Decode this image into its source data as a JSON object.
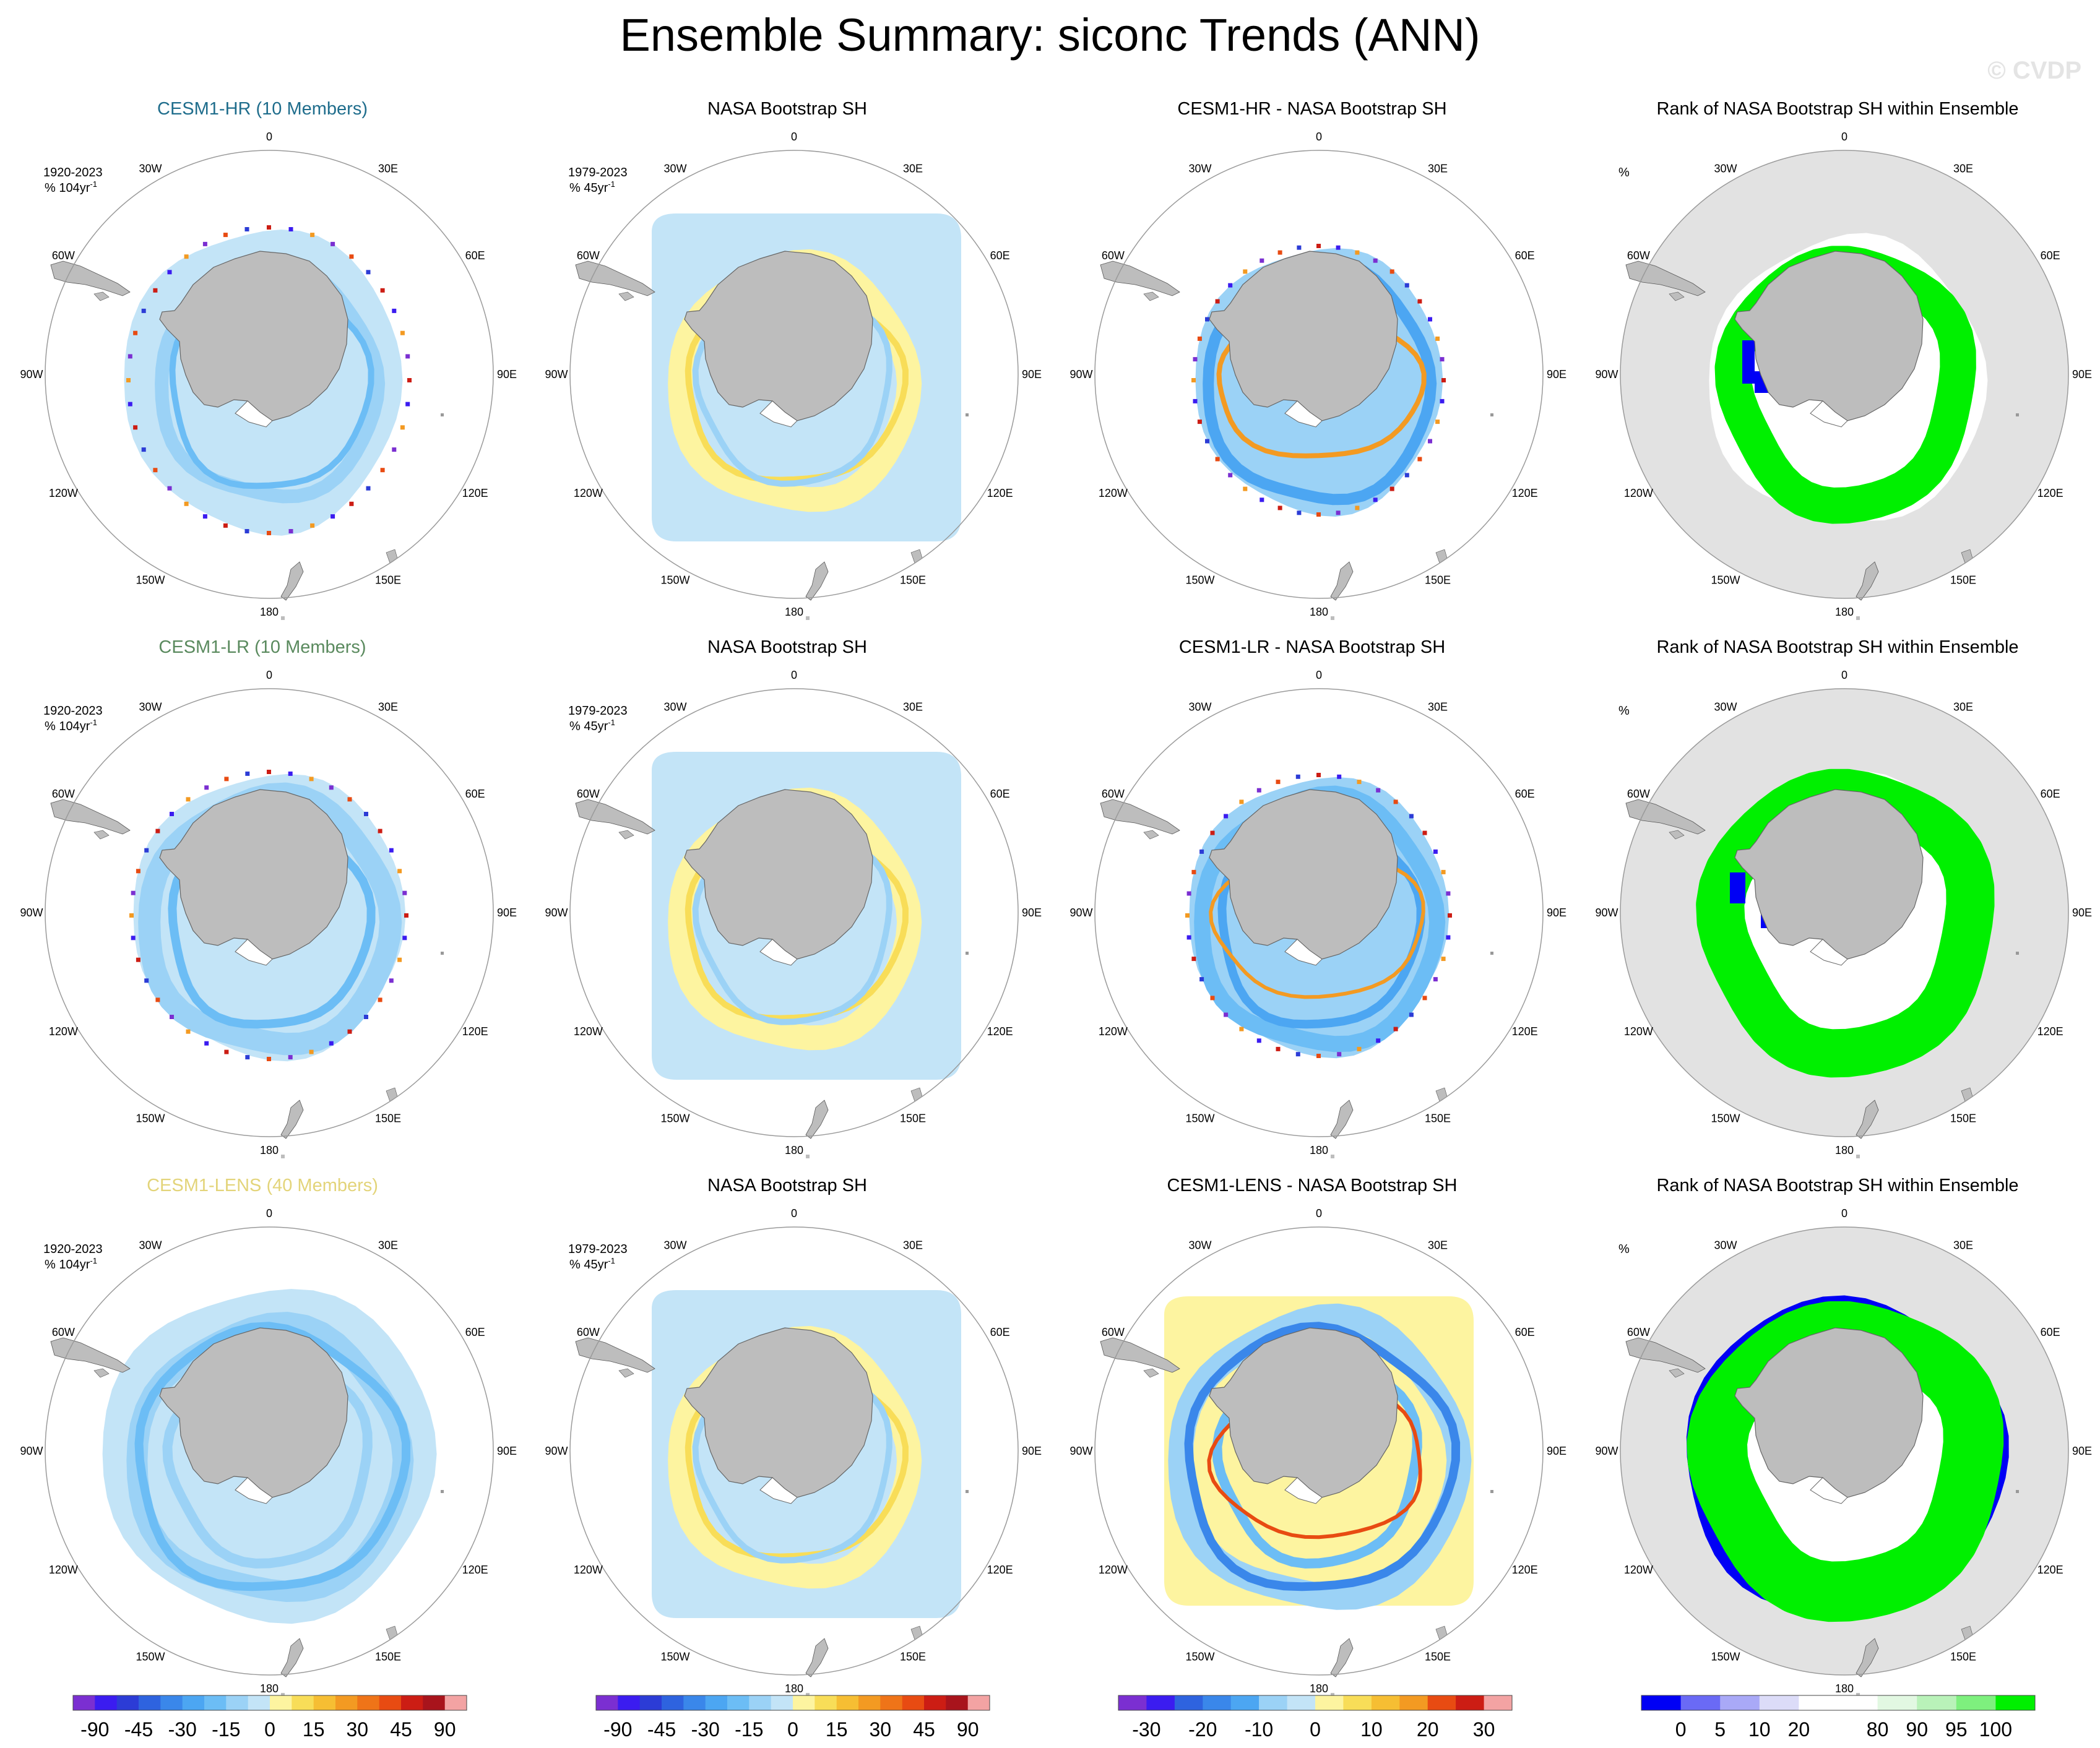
{
  "title": "Ensemble Summary: siconc Trends (ANN)",
  "watermark": "© CVDP",
  "lon_labels": [
    "0",
    "30E",
    "60E",
    "90E",
    "120E",
    "150E",
    "180",
    "150W",
    "120W",
    "90W",
    "60W",
    "30W"
  ],
  "colors": {
    "land": "#bdbdbd",
    "rank_ocean": "#e2e2e2",
    "hr_title": "#1f6d8c",
    "lr_title": "#5a8a5e",
    "lens_title": "#e3d47a"
  },
  "rows": [
    {
      "panels": [
        {
          "title": "CESM1-HR (10 Members)",
          "title_color": "#1f6d8c",
          "period": "1920-2023",
          "units": "% 104yr",
          "units_sup": "-1",
          "kind": "model",
          "style": "hr"
        },
        {
          "title": "NASA Bootstrap SH",
          "title_color": "#000000",
          "period": "1979-2023",
          "units": "% 45yr",
          "units_sup": "-1",
          "kind": "obs",
          "style": "obs"
        },
        {
          "title": "CESM1-HR - NASA Bootstrap SH",
          "title_color": "#000000",
          "period": "",
          "units": "",
          "units_sup": "",
          "kind": "diff",
          "style": "diff_hr"
        },
        {
          "title": "Rank of NASA Bootstrap SH within Ensemble",
          "title_color": "#000000",
          "period": "%",
          "units": "",
          "units_sup": "",
          "kind": "rank",
          "style": "rank_hr"
        }
      ]
    },
    {
      "panels": [
        {
          "title": "CESM1-LR (10 Members)",
          "title_color": "#5a8a5e",
          "period": "1920-2023",
          "units": "% 104yr",
          "units_sup": "-1",
          "kind": "model",
          "style": "lr"
        },
        {
          "title": "NASA Bootstrap SH",
          "title_color": "#000000",
          "period": "1979-2023",
          "units": "% 45yr",
          "units_sup": "-1",
          "kind": "obs",
          "style": "obs"
        },
        {
          "title": "CESM1-LR - NASA Bootstrap SH",
          "title_color": "#000000",
          "period": "",
          "units": "",
          "units_sup": "",
          "kind": "diff",
          "style": "diff_lr"
        },
        {
          "title": "Rank of NASA Bootstrap SH within Ensemble",
          "title_color": "#000000",
          "period": "%",
          "units": "",
          "units_sup": "",
          "kind": "rank",
          "style": "rank_lr"
        }
      ]
    },
    {
      "panels": [
        {
          "title": "CESM1-LENS (40 Members)",
          "title_color": "#e3d47a",
          "period": "1920-2023",
          "units": "% 104yr",
          "units_sup": "-1",
          "kind": "model",
          "style": "lens"
        },
        {
          "title": "NASA Bootstrap SH",
          "title_color": "#000000",
          "period": "1979-2023",
          "units": "% 45yr",
          "units_sup": "-1",
          "kind": "obs",
          "style": "obs"
        },
        {
          "title": "CESM1-LENS - NASA Bootstrap SH",
          "title_color": "#000000",
          "period": "",
          "units": "",
          "units_sup": "",
          "kind": "diff",
          "style": "diff_lens"
        },
        {
          "title": "Rank of NASA Bootstrap SH within Ensemble",
          "title_color": "#000000",
          "period": "%",
          "units": "",
          "units_sup": "",
          "kind": "rank",
          "style": "rank_lens"
        }
      ]
    }
  ],
  "colorbars": [
    {
      "labels": [
        "-90",
        "-45",
        "-30",
        "-15",
        "0",
        "15",
        "30",
        "45",
        "90"
      ],
      "colors": [
        "#7b2fd1",
        "#3b1cf0",
        "#2c3cd6",
        "#2e63df",
        "#3a87ea",
        "#4ca6f2",
        "#6cbdf5",
        "#9bd2f6",
        "#c3e4f7",
        "#fdf4a0",
        "#f8dd58",
        "#f6be33",
        "#f39a22",
        "#ef7418",
        "#e84b12",
        "#cc1d14",
        "#a8141c",
        "#f3a3a3"
      ],
      "label_positions": [
        1,
        3,
        5,
        7,
        9,
        11,
        13,
        15,
        17
      ]
    },
    {
      "labels": [
        "-90",
        "-45",
        "-30",
        "-15",
        "0",
        "15",
        "30",
        "45",
        "90"
      ],
      "colors": [
        "#7b2fd1",
        "#3b1cf0",
        "#2c3cd6",
        "#2e63df",
        "#3a87ea",
        "#4ca6f2",
        "#6cbdf5",
        "#9bd2f6",
        "#c3e4f7",
        "#fdf4a0",
        "#f8dd58",
        "#f6be33",
        "#f39a22",
        "#ef7418",
        "#e84b12",
        "#cc1d14",
        "#a8141c",
        "#f3a3a3"
      ],
      "label_positions": [
        1,
        3,
        5,
        7,
        9,
        11,
        13,
        15,
        17
      ]
    },
    {
      "labels": [
        "-30",
        "-20",
        "-10",
        "0",
        "10",
        "20",
        "30"
      ],
      "colors": [
        "#7b2fd1",
        "#3b1cf0",
        "#2e63df",
        "#3a87ea",
        "#4ca6f2",
        "#9bd2f6",
        "#c3e4f7",
        "#fdf4a0",
        "#f8dd58",
        "#f6be33",
        "#f39a22",
        "#e84b12",
        "#cc1d14",
        "#f3a3a3"
      ],
      "label_positions": [
        1,
        3,
        5,
        7,
        9,
        11,
        13
      ]
    },
    {
      "labels": [
        "0",
        "5",
        "10",
        "20",
        "80",
        "90",
        "95",
        "100"
      ],
      "colors": [
        "#0000f5",
        "#6a6af5",
        "#a9a9f7",
        "#dcdcf8",
        "#ffffff",
        "#ffffff",
        "#e2f8e2",
        "#b9f2b9",
        "#7ef07e",
        "#00f000"
      ],
      "label_positions": [
        1,
        2,
        3,
        4,
        6,
        7,
        8,
        9
      ]
    }
  ]
}
